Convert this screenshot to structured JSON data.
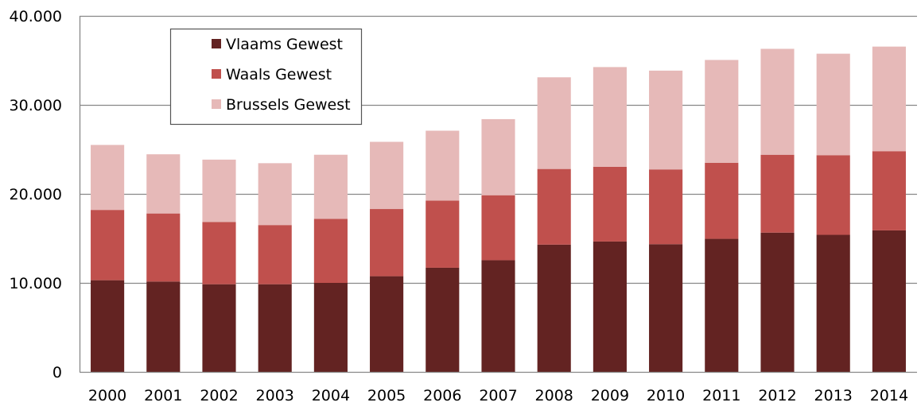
{
  "chart_data": {
    "type": "bar",
    "stacked": true,
    "categories": [
      "2000",
      "2001",
      "2002",
      "2003",
      "2004",
      "2005",
      "2006",
      "2007",
      "2008",
      "2009",
      "2010",
      "2011",
      "2012",
      "2013",
      "2014"
    ],
    "series": [
      {
        "name": "Vlaams Gewest",
        "color": "#632322",
        "values": [
          10300,
          10150,
          9850,
          9850,
          10000,
          10750,
          11700,
          12550,
          14300,
          14650,
          14350,
          14950,
          15650,
          15400,
          15900
        ]
      },
      {
        "name": "Waals Gewest",
        "color": "#c0504d",
        "values": [
          7900,
          7650,
          7000,
          6650,
          7200,
          7550,
          7550,
          7300,
          8500,
          8400,
          8400,
          8550,
          8750,
          8950,
          8900
        ]
      },
      {
        "name": "Brussels Gewest",
        "color": "#e6b9b8",
        "values": [
          7300,
          6650,
          7000,
          6950,
          7200,
          7550,
          7850,
          8550,
          10300,
          11200,
          11100,
          11550,
          11900,
          11400,
          11750
        ]
      }
    ],
    "ylim": [
      0,
      40000
    ],
    "yticks": [
      0,
      10000,
      20000,
      30000,
      40000
    ],
    "ytick_labels": [
      "0",
      "10.000",
      "20.000",
      "30.000",
      "40.000"
    ],
    "grid": true,
    "legend_position": "top-left",
    "title": "",
    "xlabel": "",
    "ylabel": ""
  }
}
